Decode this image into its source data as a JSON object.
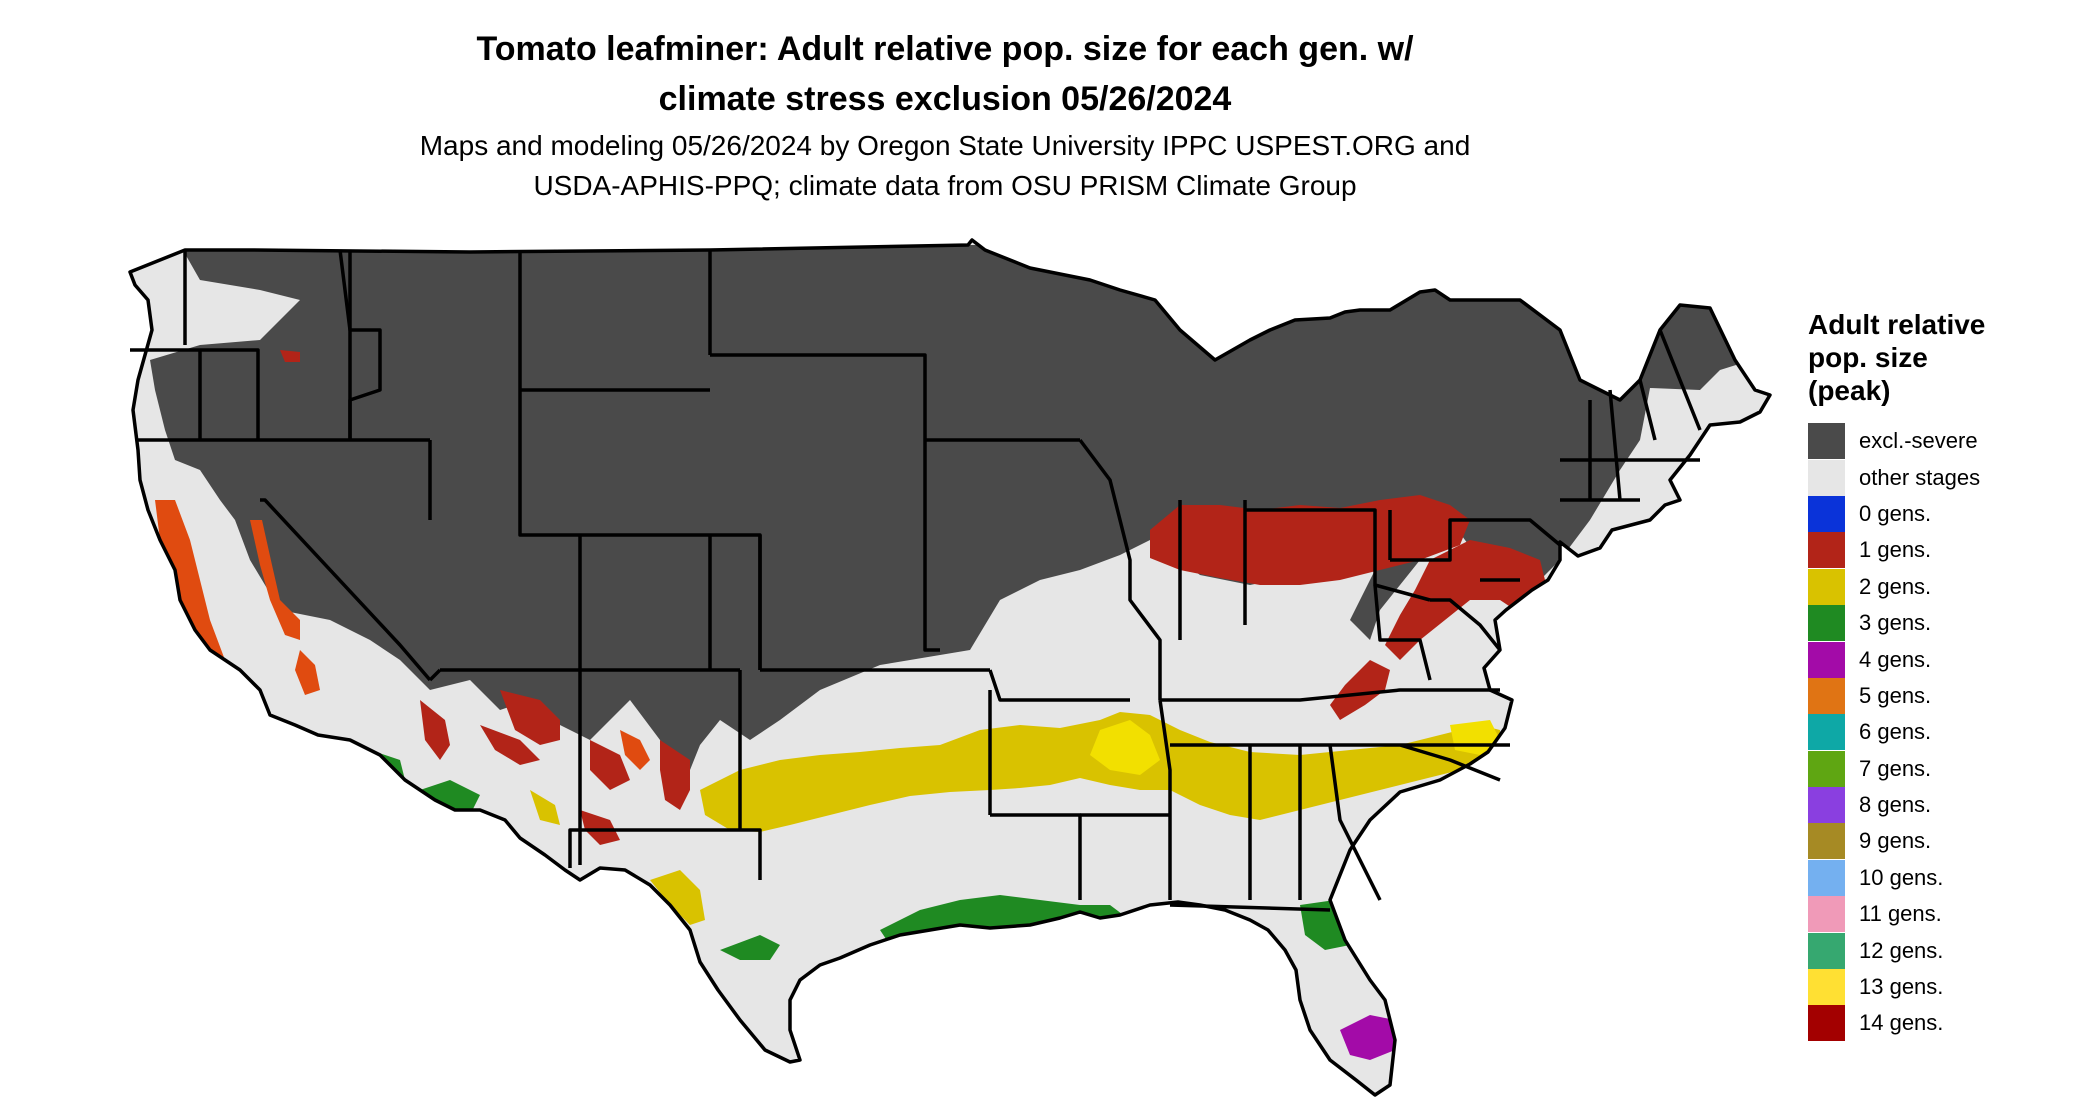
{
  "title_line1": "Tomato leafminer: Adult relative pop. size for each gen. w/",
  "title_line2": "climate stress exclusion 05/26/2024",
  "subtitle_line1": "Maps and modeling 05/26/2024 by Oregon State University IPPC USPEST.ORG and",
  "subtitle_line2": "USDA-APHIS-PPQ; climate data from OSU PRISM Climate Group",
  "legend": {
    "title_line1": "Adult relative",
    "title_line2": "pop. size",
    "title_line3": "(peak)",
    "items": [
      {
        "label": "excl.-severe",
        "color": "#4a4a4a"
      },
      {
        "label": "other stages",
        "color": "#e6e6e6"
      },
      {
        "label": "0 gens.",
        "color": "#0a33d9"
      },
      {
        "label": "1 gens.",
        "color": "#b22418"
      },
      {
        "label": "2 gens.",
        "color": "#d9c200"
      },
      {
        "label": "3 gens.",
        "color": "#1f8a22"
      },
      {
        "label": "4 gens.",
        "color": "#a30ba8"
      },
      {
        "label": "5 gens.",
        "color": "#e07414"
      },
      {
        "label": "6 gens.",
        "color": "#0ea8a6"
      },
      {
        "label": "7 gens.",
        "color": "#5fa612"
      },
      {
        "label": "8 gens.",
        "color": "#8a3fe0"
      },
      {
        "label": "9 gens.",
        "color": "#a68a24"
      },
      {
        "label": "10 gens.",
        "color": "#74b0f0"
      },
      {
        "label": "11 gens.",
        "color": "#f09ab8"
      },
      {
        "label": "12 gens.",
        "color": "#36a870"
      },
      {
        "label": "13 gens.",
        "color": "#ffe033"
      },
      {
        "label": "14 gens.",
        "color": "#a30000"
      }
    ]
  },
  "colors": {
    "excluded": "#4a4a4a",
    "other": "#e6e6e6",
    "gen1": "#b22418",
    "gen1_orange": "#e04b10",
    "gen2": "#d9c200",
    "gen2_bright": "#f2e000",
    "gen3": "#1f8a22",
    "gen4": "#a30ba8",
    "borders": "#000000",
    "background": "#ffffff"
  }
}
